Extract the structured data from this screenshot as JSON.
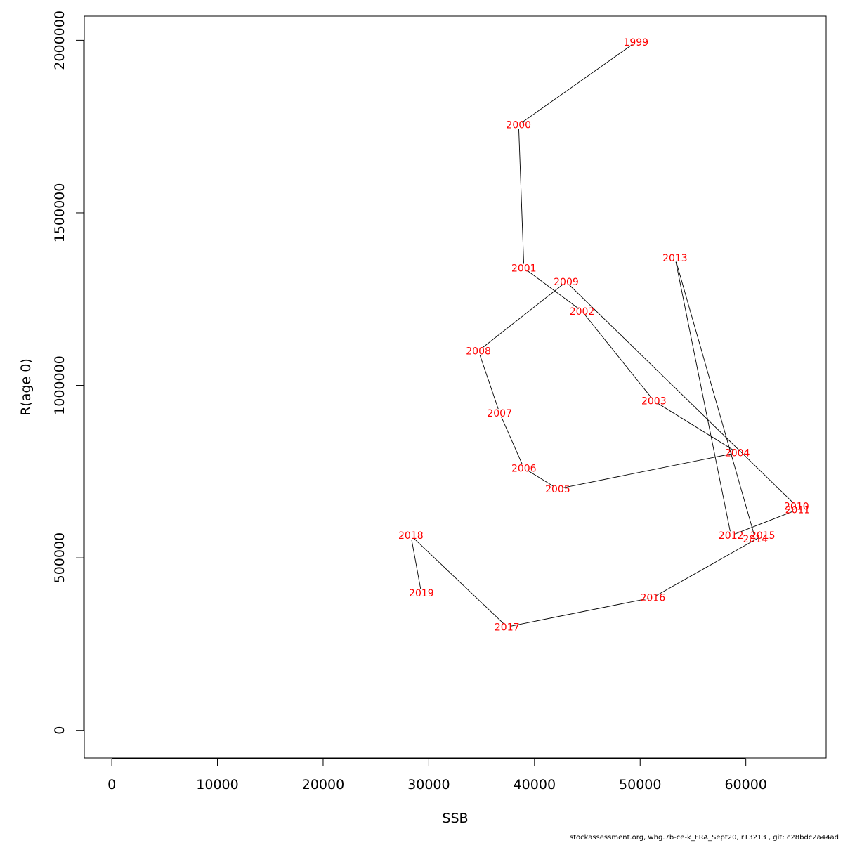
{
  "chart_data": {
    "type": "line",
    "xlabel": "SSB",
    "ylabel": "R(age 0)",
    "xlim": [
      -2600,
      67600
    ],
    "ylim": [
      -80000,
      2070000
    ],
    "x_ticks": [
      0,
      10000,
      20000,
      30000,
      40000,
      50000,
      60000
    ],
    "x_tick_labels": [
      "0",
      "10000",
      "20000",
      "30000",
      "40000",
      "50000",
      "60000"
    ],
    "y_ticks": [
      0,
      500000,
      1000000,
      1500000,
      2000000
    ],
    "y_tick_labels": [
      "0",
      "500000",
      "1000000",
      "1500000",
      "2000000"
    ],
    "line_color": "#000000",
    "label_color": "#ff0000",
    "points": [
      {
        "year": "1999",
        "ssb": 49600,
        "r": 1995000
      },
      {
        "year": "2000",
        "ssb": 38500,
        "r": 1755000
      },
      {
        "year": "2001",
        "ssb": 39000,
        "r": 1340000
      },
      {
        "year": "2002",
        "ssb": 44500,
        "r": 1215000
      },
      {
        "year": "2003",
        "ssb": 51300,
        "r": 955000
      },
      {
        "year": "2004",
        "ssb": 59200,
        "r": 805000
      },
      {
        "year": "2005",
        "ssb": 42200,
        "r": 700000
      },
      {
        "year": "2006",
        "ssb": 39000,
        "r": 760000
      },
      {
        "year": "2007",
        "ssb": 36700,
        "r": 920000
      },
      {
        "year": "2008",
        "ssb": 34700,
        "r": 1100000
      },
      {
        "year": "2009",
        "ssb": 43000,
        "r": 1300000
      },
      {
        "year": "2010",
        "ssb": 64800,
        "r": 650000
      },
      {
        "year": "2011",
        "ssb": 64900,
        "r": 640000
      },
      {
        "year": "2012",
        "ssb": 58600,
        "r": 565000
      },
      {
        "year": "2013",
        "ssb": 53300,
        "r": 1370000
      },
      {
        "year": "2014",
        "ssb": 60900,
        "r": 555000
      },
      {
        "year": "2015",
        "ssb": 61600,
        "r": 565000
      },
      {
        "year": "2016",
        "ssb": 51200,
        "r": 385000
      },
      {
        "year": "2017",
        "ssb": 37400,
        "r": 300000
      },
      {
        "year": "2018",
        "ssb": 28300,
        "r": 565000
      },
      {
        "year": "2019",
        "ssb": 29300,
        "r": 398000
      }
    ]
  },
  "footer": "stockassessment.org, whg.7b-ce-k_FRA_Sept20, r13213 , git: c28bdc2a44ad"
}
